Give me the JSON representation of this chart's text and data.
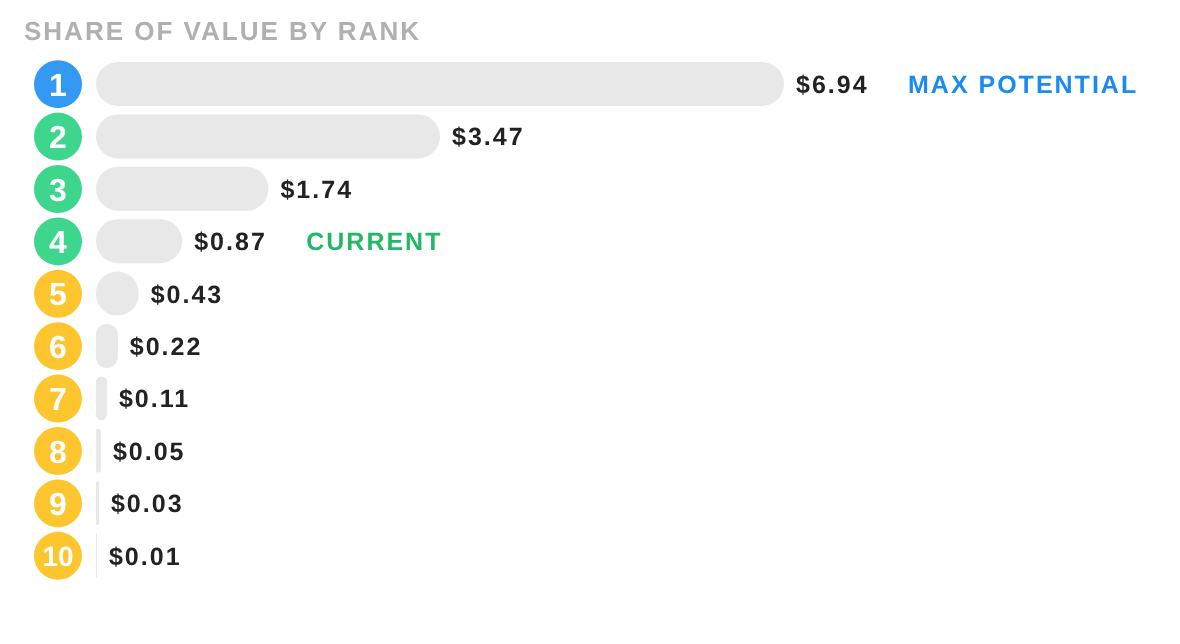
{
  "chart_data": {
    "type": "bar",
    "orientation": "horizontal",
    "title": "SHARE OF VALUE BY RANK",
    "categories": [
      "1",
      "2",
      "3",
      "4",
      "5",
      "6",
      "7",
      "8",
      "9",
      "10"
    ],
    "values": [
      6.94,
      3.47,
      1.74,
      0.87,
      0.43,
      0.22,
      0.11,
      0.05,
      0.03,
      0.01
    ],
    "value_labels": [
      "$6.94",
      "$3.47",
      "$1.74",
      "$0.87",
      "$0.43",
      "$0.22",
      "$0.11",
      "$0.05",
      "$0.03",
      "$0.01"
    ],
    "color": "#e8e8e8",
    "annotations": [
      "MAX POTENTIAL",
      "CURRENT"
    ],
    "legend": false,
    "grid": false
  }
}
